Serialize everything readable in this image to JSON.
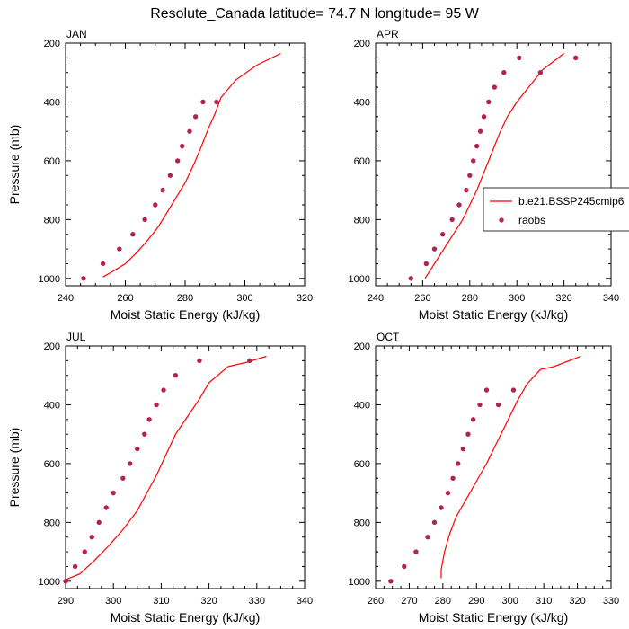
{
  "title": "Resolute_Canada  latitude= 74.7 N longitude= 95 W",
  "legend": {
    "model_label": "b.e21.BSSP245cmip6",
    "obs_label": "raobs",
    "model_color": "#ff0000",
    "obs_color": "#b22255"
  },
  "chart_data": [
    {
      "type": "line",
      "panel": "JAN",
      "xlabel": "Moist Static Energy (kJ/kg)",
      "ylabel": "Pressure (mb)",
      "xlim": [
        240,
        320
      ],
      "ylim": [
        1025,
        200
      ],
      "xticks": [
        240,
        260,
        280,
        300,
        320
      ],
      "yticks": [
        200,
        400,
        600,
        800,
        1000
      ],
      "model": {
        "x": [
          252.5,
          256,
          260,
          264,
          267.5,
          271,
          274,
          277,
          280,
          283,
          285.5,
          288,
          290,
          292,
          297,
          304,
          312
        ],
        "y": [
          995,
          975,
          950,
          910,
          870,
          825,
          775,
          725,
          675,
          610,
          550,
          485,
          440,
          385,
          325,
          275,
          235
        ]
      },
      "obs": {
        "x": [
          246,
          252.5,
          258,
          262.5,
          266.5,
          270,
          272.5,
          275,
          277.5,
          279,
          281.5,
          283.5,
          286,
          290.5
        ],
        "y": [
          1000,
          950,
          900,
          850,
          800,
          750,
          700,
          650,
          600,
          550,
          500,
          450,
          400,
          400
        ]
      }
    },
    {
      "type": "line",
      "panel": "APR",
      "xlabel": "Moist Static Energy (kJ/kg)",
      "ylabel": "",
      "xlim": [
        240,
        340
      ],
      "ylim": [
        1025,
        200
      ],
      "xticks": [
        240,
        260,
        280,
        300,
        320,
        340
      ],
      "yticks": [
        200,
        400,
        600,
        800,
        1000
      ],
      "model": {
        "x": [
          261,
          265,
          269,
          273,
          277,
          280,
          283,
          285.5,
          288,
          290.5,
          293,
          296,
          300,
          305,
          311,
          320
        ],
        "y": [
          1000,
          950,
          900,
          850,
          800,
          750,
          700,
          650,
          600,
          550,
          500,
          450,
          400,
          350,
          290,
          235
        ]
      },
      "obs": {
        "x": [
          255,
          261.5,
          265,
          268.5,
          272.5,
          275.5,
          278.5,
          280,
          281.5,
          283,
          284.5,
          286,
          288,
          290.5,
          294.5,
          301,
          310,
          325
        ],
        "y": [
          1000,
          950,
          900,
          850,
          800,
          750,
          700,
          650,
          600,
          550,
          500,
          450,
          400,
          350,
          300,
          250,
          300,
          250
        ]
      }
    },
    {
      "type": "line",
      "panel": "JUL",
      "xlabel": "Moist Static Energy (kJ/kg)",
      "ylabel": "Pressure (mb)",
      "xlim": [
        290,
        340
      ],
      "ylim": [
        1025,
        200
      ],
      "xticks": [
        290,
        300,
        310,
        320,
        330,
        340
      ],
      "yticks": [
        200,
        400,
        600,
        800,
        1000
      ],
      "model": {
        "x": [
          290,
          293,
          296,
          299,
          302,
          305,
          307,
          309,
          311,
          313,
          315.5,
          318,
          320,
          324,
          328,
          332
        ],
        "y": [
          995,
          975,
          930,
          880,
          825,
          760,
          700,
          640,
          570,
          500,
          440,
          380,
          325,
          270,
          255,
          235
        ]
      },
      "obs": {
        "x": [
          290,
          292,
          294,
          295.5,
          297,
          298.5,
          300,
          302,
          303.5,
          305,
          306.5,
          307.5,
          309,
          310.5,
          313,
          318,
          328.5
        ],
        "y": [
          1000,
          950,
          900,
          850,
          800,
          750,
          700,
          650,
          600,
          550,
          500,
          450,
          400,
          350,
          300,
          250,
          250
        ]
      }
    },
    {
      "type": "line",
      "panel": "OCT",
      "xlabel": "Moist Static Energy (kJ/kg)",
      "ylabel": "",
      "xlim": [
        260,
        330
      ],
      "ylim": [
        1025,
        200
      ],
      "xticks": [
        260,
        270,
        280,
        290,
        300,
        310,
        320,
        330
      ],
      "yticks": [
        200,
        400,
        600,
        800,
        1000
      ],
      "model": {
        "x": [
          279.5,
          279.5,
          280.5,
          282,
          284,
          287,
          290,
          293,
          296,
          299,
          302,
          305,
          309,
          313,
          321
        ],
        "y": [
          990,
          960,
          900,
          840,
          780,
          720,
          660,
          600,
          530,
          460,
          390,
          330,
          280,
          270,
          235
        ]
      },
      "obs": {
        "x": [
          264.5,
          268.5,
          272,
          275.5,
          277.5,
          279.5,
          281.5,
          283,
          284.5,
          286,
          287.5,
          289,
          291,
          293,
          296.5,
          301
        ],
        "y": [
          1000,
          950,
          900,
          850,
          800,
          750,
          700,
          650,
          600,
          550,
          500,
          450,
          400,
          350,
          400,
          350
        ]
      }
    }
  ]
}
